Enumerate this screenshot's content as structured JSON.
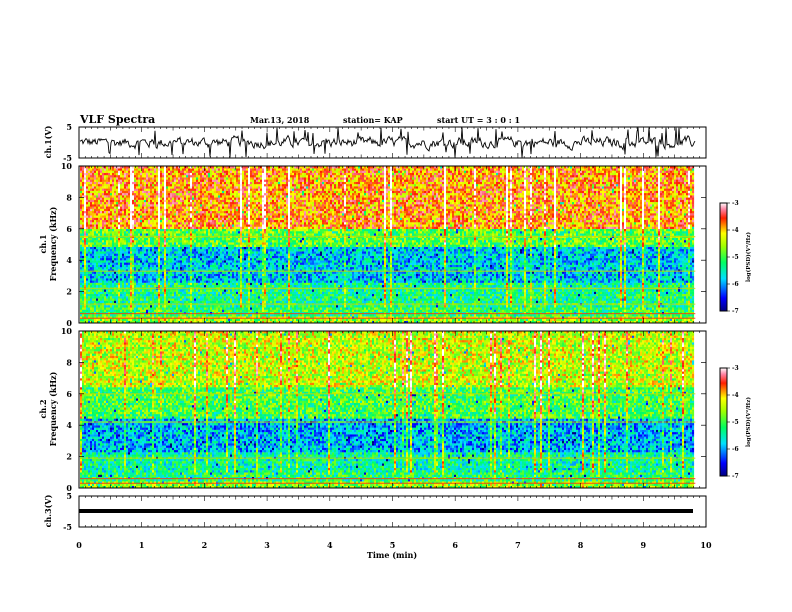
{
  "header": {
    "title": "VLF Spectra",
    "date": "Mar.13, 2018",
    "station": "station= KAP",
    "start_ut": "start UT =  3 : 0  : 1"
  },
  "chart_data": [
    {
      "type": "line",
      "name": "ch1-waveform",
      "ylabel": "ch.1(V)",
      "ylim": [
        -5,
        5
      ],
      "y_ticks": [
        "5",
        "-5"
      ],
      "xlim": [
        0,
        10
      ],
      "color": "#000000",
      "description_values": {
        "mean": 0.0,
        "amplitude": 2.5
      }
    },
    {
      "type": "heatmap",
      "name": "ch1-spectrogram",
      "ylabel": "ch.1\nFrequency (kHz)",
      "ylim": [
        0,
        10
      ],
      "y_ticks": [
        "0",
        "2",
        "4",
        "6",
        "8",
        "10"
      ],
      "xlim": [
        0,
        10
      ],
      "data_extent_x": [
        0,
        9.83
      ],
      "colorbar": {
        "label": "log(PSD)(V²/Hz)",
        "range": [
          -7,
          -3
        ],
        "ticks": [
          "-3",
          "-4",
          "-5",
          "-6",
          "-7"
        ]
      },
      "band_levels": [
        {
          "f": [
            0,
            0.5
          ],
          "level": -4.6
        },
        {
          "f": [
            0.5,
            1.0
          ],
          "level": -5.1
        },
        {
          "f": [
            1.0,
            2.6
          ],
          "level": -5.3
        },
        {
          "f": [
            2.6,
            4.8
          ],
          "level": -5.8
        },
        {
          "f": [
            4.8,
            6.0
          ],
          "level": -4.9
        },
        {
          "f": [
            6.0,
            10.0
          ],
          "level": -3.8
        }
      ]
    },
    {
      "type": "heatmap",
      "name": "ch2-spectrogram",
      "ylabel": "ch.2\nFrequency (kHz)",
      "ylim": [
        0,
        10
      ],
      "y_ticks": [
        "0",
        "2",
        "4",
        "6",
        "8",
        "10"
      ],
      "xlim": [
        0,
        10
      ],
      "data_extent_x": [
        0,
        9.83
      ],
      "colorbar": {
        "label": "log(PSD)(V²/Hz)",
        "range": [
          -7,
          -3
        ],
        "ticks": [
          "-3",
          "-4",
          "-5",
          "-6",
          "-7"
        ]
      },
      "band_levels": [
        {
          "f": [
            0,
            0.5
          ],
          "level": -4.7
        },
        {
          "f": [
            0.5,
            1.0
          ],
          "level": -5.2
        },
        {
          "f": [
            1.0,
            2.3
          ],
          "level": -5.4
        },
        {
          "f": [
            2.3,
            4.5
          ],
          "level": -5.9
        },
        {
          "f": [
            4.5,
            6.5
          ],
          "level": -5.0
        },
        {
          "f": [
            6.5,
            10.0
          ],
          "level": -4.4
        }
      ]
    },
    {
      "type": "line",
      "name": "ch3-waveform",
      "ylabel": "ch.3(V)",
      "ylim": [
        -5,
        5
      ],
      "y_ticks": [
        "5",
        "-5"
      ],
      "xlim": [
        0,
        10
      ],
      "color": "#000000",
      "values_constant": 0.0
    }
  ],
  "xaxis": {
    "label": "Time (min)",
    "ticks": [
      "0",
      "1",
      "2",
      "3",
      "4",
      "5",
      "6",
      "7",
      "8",
      "9",
      "10"
    ]
  }
}
